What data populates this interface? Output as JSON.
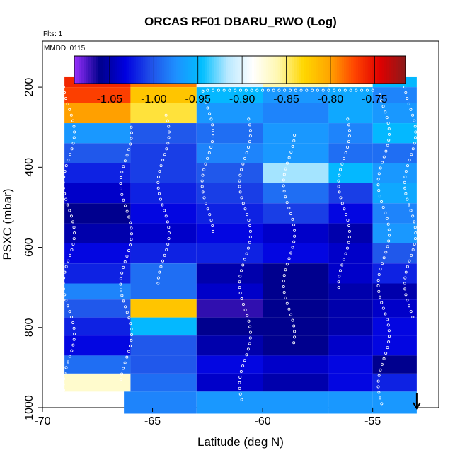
{
  "chart_data": {
    "type": "heatmap",
    "title": "ORCAS RF01 DBARU_RWO (Log)",
    "corner_note_1": "Flts: 1",
    "corner_note_2": "MMDD: 0115",
    "xlabel": "Latitude (deg N)",
    "ylabel": "PSXC (mbar)",
    "xlim": [
      -70,
      -52
    ],
    "ylim": [
      1000,
      85
    ],
    "y_reversed": true,
    "xticks": [
      -70,
      -65,
      -60,
      -55
    ],
    "yticks": [
      200,
      400,
      600,
      800,
      1000
    ],
    "colorbar": {
      "range": [
        -1.09,
        -0.715
      ],
      "ticks": [
        -1.05,
        -1.0,
        -0.95,
        -0.9,
        -0.85,
        -0.8,
        -0.75
      ],
      "tick_labels": [
        "-1.05",
        "-1.00",
        "-0.95",
        "-0.90",
        "-0.85",
        "-0.80",
        "-0.75"
      ],
      "colors": [
        "#9b30ff",
        "#00008b",
        "#0000e0",
        "#2050e8",
        "#1e90ff",
        "#00bfff",
        "#b8e8ff",
        "#ffffff",
        "#fff8b0",
        "#ffd700",
        "#ffa500",
        "#ff4500",
        "#e00000",
        "#8b1a1a"
      ]
    },
    "data_range": {
      "x": [
        -69,
        -53
      ],
      "y": [
        175,
        1015
      ]
    },
    "rows": [
      {
        "p": [
          175,
          200
        ],
        "segments": [
          [
            -69,
            -66,
            -0.76
          ],
          [
            -66,
            -63,
            -0.79
          ],
          [
            -63,
            -60,
            -0.9
          ],
          [
            -60,
            -57,
            -0.86
          ],
          [
            -57,
            -55,
            -0.88
          ],
          [
            -55,
            -53,
            -0.95
          ]
        ]
      },
      {
        "p": [
          200,
          240
        ],
        "segments": [
          [
            -69,
            -66,
            -0.77
          ],
          [
            -66,
            -63,
            -0.82
          ],
          [
            -63,
            -60,
            -0.95
          ],
          [
            -60,
            -57,
            -0.97
          ],
          [
            -57,
            -55,
            -0.96
          ],
          [
            -55,
            -53,
            -0.98
          ]
        ]
      },
      {
        "p": [
          240,
          290
        ],
        "segments": [
          [
            -69,
            -66,
            -0.8
          ],
          [
            -66,
            -63,
            -0.84
          ],
          [
            -63,
            -60,
            -0.97
          ],
          [
            -60,
            -57,
            -0.98
          ],
          [
            -57,
            -55,
            -0.96
          ],
          [
            -55,
            -53,
            -0.97
          ]
        ]
      },
      {
        "p": [
          290,
          340
        ],
        "segments": [
          [
            -69,
            -66,
            -0.97
          ],
          [
            -66,
            -63,
            -1.0
          ],
          [
            -63,
            -60,
            -0.99
          ],
          [
            -60,
            -57,
            -0.97
          ],
          [
            -57,
            -55,
            -0.98
          ],
          [
            -55,
            -53,
            -0.95
          ]
        ]
      },
      {
        "p": [
          340,
          390
        ],
        "segments": [
          [
            -69,
            -66,
            -1.0
          ],
          [
            -66,
            -63,
            -1.01
          ],
          [
            -63,
            -60,
            -0.98
          ],
          [
            -60,
            -57,
            -0.97
          ],
          [
            -57,
            -55,
            -0.99
          ],
          [
            -55,
            -53,
            -0.99
          ]
        ]
      },
      {
        "p": [
          390,
          440
        ],
        "segments": [
          [
            -69,
            -66,
            -1.02
          ],
          [
            -66,
            -63,
            -1.01
          ],
          [
            -63,
            -60,
            -1.0
          ],
          [
            -60,
            -57,
            -0.92
          ],
          [
            -57,
            -55,
            -0.95
          ],
          [
            -55,
            -53,
            -0.97
          ]
        ]
      },
      {
        "p": [
          440,
          490
        ],
        "segments": [
          [
            -69,
            -66,
            -1.04
          ],
          [
            -66,
            -63,
            -1.02
          ],
          [
            -63,
            -60,
            -1.01
          ],
          [
            -60,
            -57,
            -0.99
          ],
          [
            -57,
            -55,
            -1.01
          ],
          [
            -55,
            -53,
            -0.96
          ]
        ]
      },
      {
        "p": [
          490,
          540
        ],
        "segments": [
          [
            -69,
            -66,
            -1.06
          ],
          [
            -66,
            -63,
            -1.03
          ],
          [
            -63,
            -60,
            -1.02
          ],
          [
            -60,
            -57,
            -1.01
          ],
          [
            -57,
            -55,
            -1.03
          ],
          [
            -55,
            -53,
            -0.98
          ]
        ]
      },
      {
        "p": [
          540,
          590
        ],
        "segments": [
          [
            -69,
            -66,
            -1.05
          ],
          [
            -66,
            -63,
            -1.04
          ],
          [
            -63,
            -60,
            -1.03
          ],
          [
            -60,
            -57,
            -1.04
          ],
          [
            -57,
            -55,
            -1.05
          ],
          [
            -55,
            -53,
            -0.97
          ]
        ]
      },
      {
        "p": [
          590,
          640
        ],
        "segments": [
          [
            -69,
            -66,
            -1.03
          ],
          [
            -66,
            -63,
            -1.02
          ],
          [
            -63,
            -60,
            -1.02
          ],
          [
            -60,
            -57,
            -1.03
          ],
          [
            -57,
            -55,
            -1.04
          ],
          [
            -55,
            -53,
            -1.0
          ]
        ]
      },
      {
        "p": [
          640,
          690
        ],
        "segments": [
          [
            -69,
            -66,
            -1.02
          ],
          [
            -66,
            -63,
            -0.99
          ],
          [
            -63,
            -60,
            -1.05
          ],
          [
            -60,
            -57,
            -1.06
          ],
          [
            -57,
            -55,
            -1.04
          ],
          [
            -55,
            -53,
            -1.02
          ]
        ]
      },
      {
        "p": [
          690,
          730
        ],
        "segments": [
          [
            -69,
            -66,
            -0.98
          ],
          [
            -66,
            -63,
            -0.99
          ],
          [
            -63,
            -60,
            -1.04
          ],
          [
            -60,
            -57,
            -1.06
          ],
          [
            -57,
            -55,
            -1.05
          ],
          [
            -55,
            -53,
            -1.05
          ]
        ]
      },
      {
        "p": [
          730,
          775
        ],
        "segments": [
          [
            -69,
            -66,
            -1.0
          ],
          [
            -66,
            -63,
            -0.82
          ],
          [
            -63,
            -60,
            -1.07
          ],
          [
            -60,
            -57,
            -1.06
          ],
          [
            -57,
            -55,
            -1.05
          ],
          [
            -55,
            -53,
            -1.04
          ]
        ]
      },
      {
        "p": [
          775,
          820
        ],
        "segments": [
          [
            -69,
            -66,
            -1.02
          ],
          [
            -66,
            -63,
            -0.95
          ],
          [
            -63,
            -60,
            -1.06
          ],
          [
            -60,
            -57,
            -1.06
          ],
          [
            -57,
            -55,
            -1.05
          ],
          [
            -55,
            -53,
            -1.03
          ]
        ]
      },
      {
        "p": [
          820,
          870
        ],
        "segments": [
          [
            -69,
            -66,
            -1.03
          ],
          [
            -66,
            -63,
            -1.0
          ],
          [
            -63,
            -60,
            -1.05
          ],
          [
            -60,
            -57,
            -1.06
          ],
          [
            -57,
            -55,
            -1.04
          ],
          [
            -55,
            -53,
            -1.03
          ]
        ]
      },
      {
        "p": [
          870,
          915
        ],
        "segments": [
          [
            -69,
            -66,
            -0.99
          ],
          [
            -66,
            -63,
            -1.0
          ],
          [
            -63,
            -60,
            -1.03
          ],
          [
            -60,
            -57,
            -1.04
          ],
          [
            -57,
            -55,
            -1.03
          ],
          [
            -55,
            -53,
            -1.06
          ]
        ]
      },
      {
        "p": [
          915,
          960
        ],
        "segments": [
          [
            -69,
            -66,
            -0.87
          ],
          [
            -66,
            -63,
            -0.99
          ],
          [
            -63,
            -60,
            -1.04
          ],
          [
            -60,
            -57,
            -1.05
          ],
          [
            -57,
            -55,
            -1.03
          ],
          [
            -55,
            -53,
            -1.02
          ]
        ]
      },
      {
        "p": [
          960,
          1015
        ],
        "segments": [
          [
            -66.3,
            -63,
            -0.98
          ],
          [
            -63,
            -60,
            -0.97
          ],
          [
            -60,
            -57,
            -0.97
          ],
          [
            -57,
            -55,
            -0.97
          ],
          [
            -55,
            -53,
            -0.97
          ]
        ]
      }
    ],
    "flight_track_markers": "white open circles",
    "arrow_marker": {
      "x": -53,
      "y": 1000
    }
  }
}
